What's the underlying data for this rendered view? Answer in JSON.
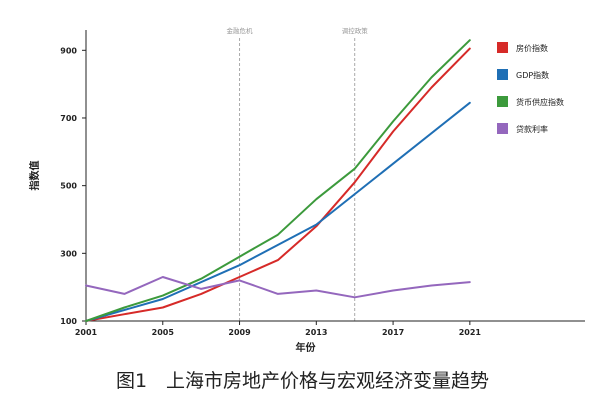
{
  "figure": {
    "caption": "图1　上海市房地产价格与宏观经济变量趋势"
  },
  "chart_data": {
    "type": "line",
    "title": "",
    "xlabel": "年份",
    "ylabel": "指数值",
    "xlim": [
      2001,
      2027
    ],
    "ylim": [
      100,
      960
    ],
    "x_ticks": [
      2001,
      2005,
      2009,
      2013,
      2017,
      2021
    ],
    "y_ticks": [
      100,
      300,
      500,
      700,
      900
    ],
    "grid": false,
    "legend_position": "top-right",
    "events": [
      {
        "x": 2009,
        "label": "金融危机"
      },
      {
        "x": 2015,
        "label": "调控政策"
      }
    ],
    "series": [
      {
        "name": "房价指数",
        "color": "#d62a28",
        "x": [
          2001,
          2003,
          2005,
          2007,
          2009,
          2011,
          2013,
          2015,
          2017,
          2019,
          2021
        ],
        "values": [
          100,
          120,
          140,
          180,
          230,
          280,
          380,
          510,
          660,
          790,
          905
        ]
      },
      {
        "name": "GDP指数",
        "color": "#1f6fb5",
        "x": [
          2001,
          2005,
          2009,
          2013,
          2017,
          2021
        ],
        "values": [
          100,
          165,
          265,
          385,
          565,
          745
        ]
      },
      {
        "name": "货币供应指数",
        "color": "#3c9a3c",
        "x": [
          2001,
          2003,
          2005,
          2007,
          2009,
          2011,
          2013,
          2015,
          2017,
          2019,
          2021
        ],
        "values": [
          100,
          140,
          175,
          225,
          290,
          355,
          460,
          550,
          690,
          820,
          930
        ]
      },
      {
        "name": "贷款利率",
        "color": "#9467bd",
        "x": [
          2001,
          2003,
          2005,
          2007,
          2009,
          2011,
          2013,
          2015,
          2017,
          2019,
          2021
        ],
        "values": [
          205,
          180,
          230,
          195,
          220,
          180,
          190,
          170,
          190,
          205,
          215
        ]
      }
    ]
  }
}
